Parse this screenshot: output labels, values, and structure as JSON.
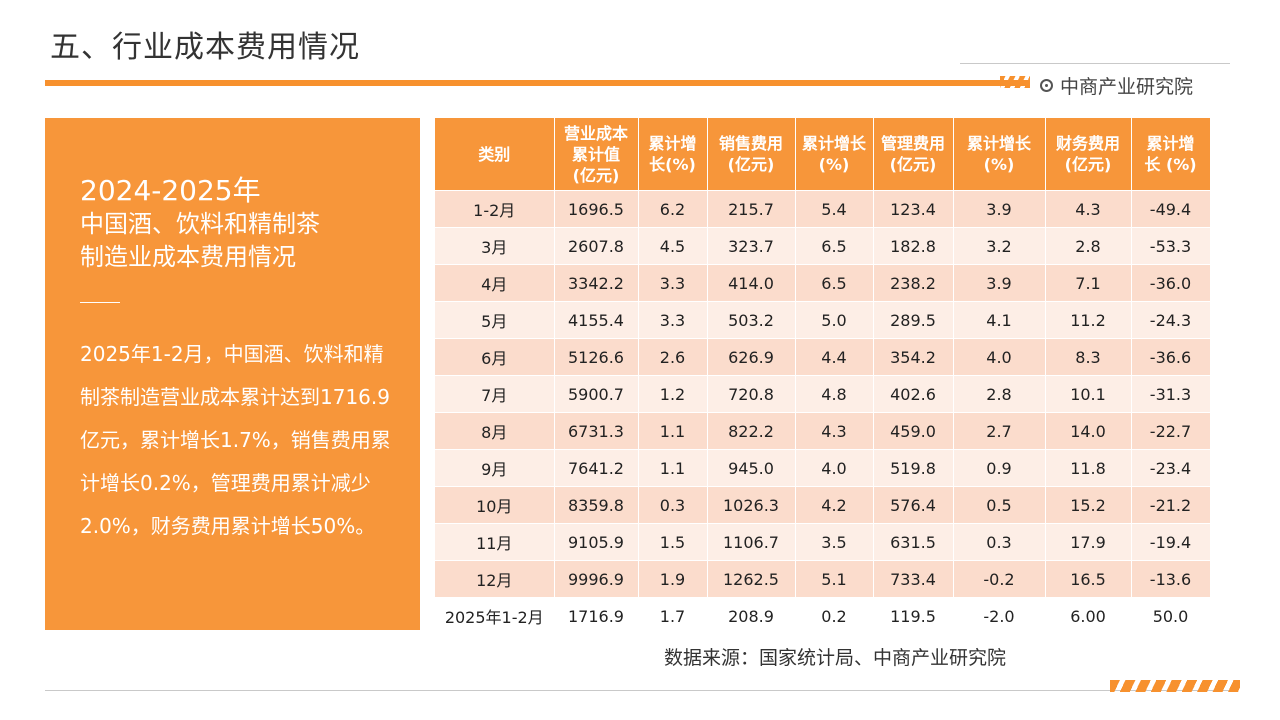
{
  "header": {
    "title": "五、行业成本费用情况",
    "brand": "中商产业研究院"
  },
  "panel": {
    "year": "2024-2025年",
    "subtitle": "中国酒、饮料和精制茶\n制造业成本费用情况",
    "body": "2025年1-2月，中国酒、饮料和精制茶制造营业成本累计达到1716.9亿元，累计增长1.7%，销售费用累计增长0.2%，管理费用累计减少2.0%，财务费用累计增长50%。"
  },
  "table": {
    "headers": [
      "类别",
      "营业成本\n累计值\n(亿元)",
      "累计增\n长(%)",
      "销售费用\n(亿元)",
      "累计增长\n(%)",
      "管理费用\n(亿元)",
      "累计增长\n(%)",
      "财务费用\n(亿元)",
      "累计增\n长 (%)"
    ],
    "rows": [
      [
        "1-2月",
        "1696.5",
        "6.2",
        "215.7",
        "5.4",
        "123.4",
        "3.9",
        "4.3",
        "-49.4"
      ],
      [
        "3月",
        "2607.8",
        "4.5",
        "323.7",
        "6.5",
        "182.8",
        "3.2",
        "2.8",
        "-53.3"
      ],
      [
        "4月",
        "3342.2",
        "3.3",
        "414.0",
        "6.5",
        "238.2",
        "3.9",
        "7.1",
        "-36.0"
      ],
      [
        "5月",
        "4155.4",
        "3.3",
        "503.2",
        "5.0",
        "289.5",
        "4.1",
        "11.2",
        "-24.3"
      ],
      [
        "6月",
        "5126.6",
        "2.6",
        "626.9",
        "4.4",
        "354.2",
        "4.0",
        "8.3",
        "-36.6"
      ],
      [
        "7月",
        "5900.7",
        "1.2",
        "720.8",
        "4.8",
        "402.6",
        "2.8",
        "10.1",
        "-31.3"
      ],
      [
        "8月",
        "6731.3",
        "1.1",
        "822.2",
        "4.3",
        "459.0",
        "2.7",
        "14.0",
        "-22.7"
      ],
      [
        "9月",
        "7641.2",
        "1.1",
        "945.0",
        "4.0",
        "519.8",
        "0.9",
        "11.8",
        "-23.4"
      ],
      [
        "10月",
        "8359.8",
        "0.3",
        "1026.3",
        "4.2",
        "576.4",
        "0.5",
        "15.2",
        "-21.2"
      ],
      [
        "11月",
        "9105.9",
        "1.5",
        "1106.7",
        "3.5",
        "631.5",
        "0.3",
        "17.9",
        "-19.4"
      ],
      [
        "12月",
        "9996.9",
        "1.9",
        "1262.5",
        "5.1",
        "733.4",
        "-0.2",
        "16.5",
        "-13.6"
      ],
      [
        "2025年1-2月",
        "1716.9",
        "1.7",
        "208.9",
        "0.2",
        "119.5",
        "-2.0",
        "6.00",
        "50.0"
      ]
    ]
  },
  "footer": {
    "source": "数据来源：国家统计局、中商产业研究院"
  },
  "colors": {
    "accent": "#f7963a",
    "row_odd": "#fbdccc",
    "row_even": "#fdeee6"
  }
}
